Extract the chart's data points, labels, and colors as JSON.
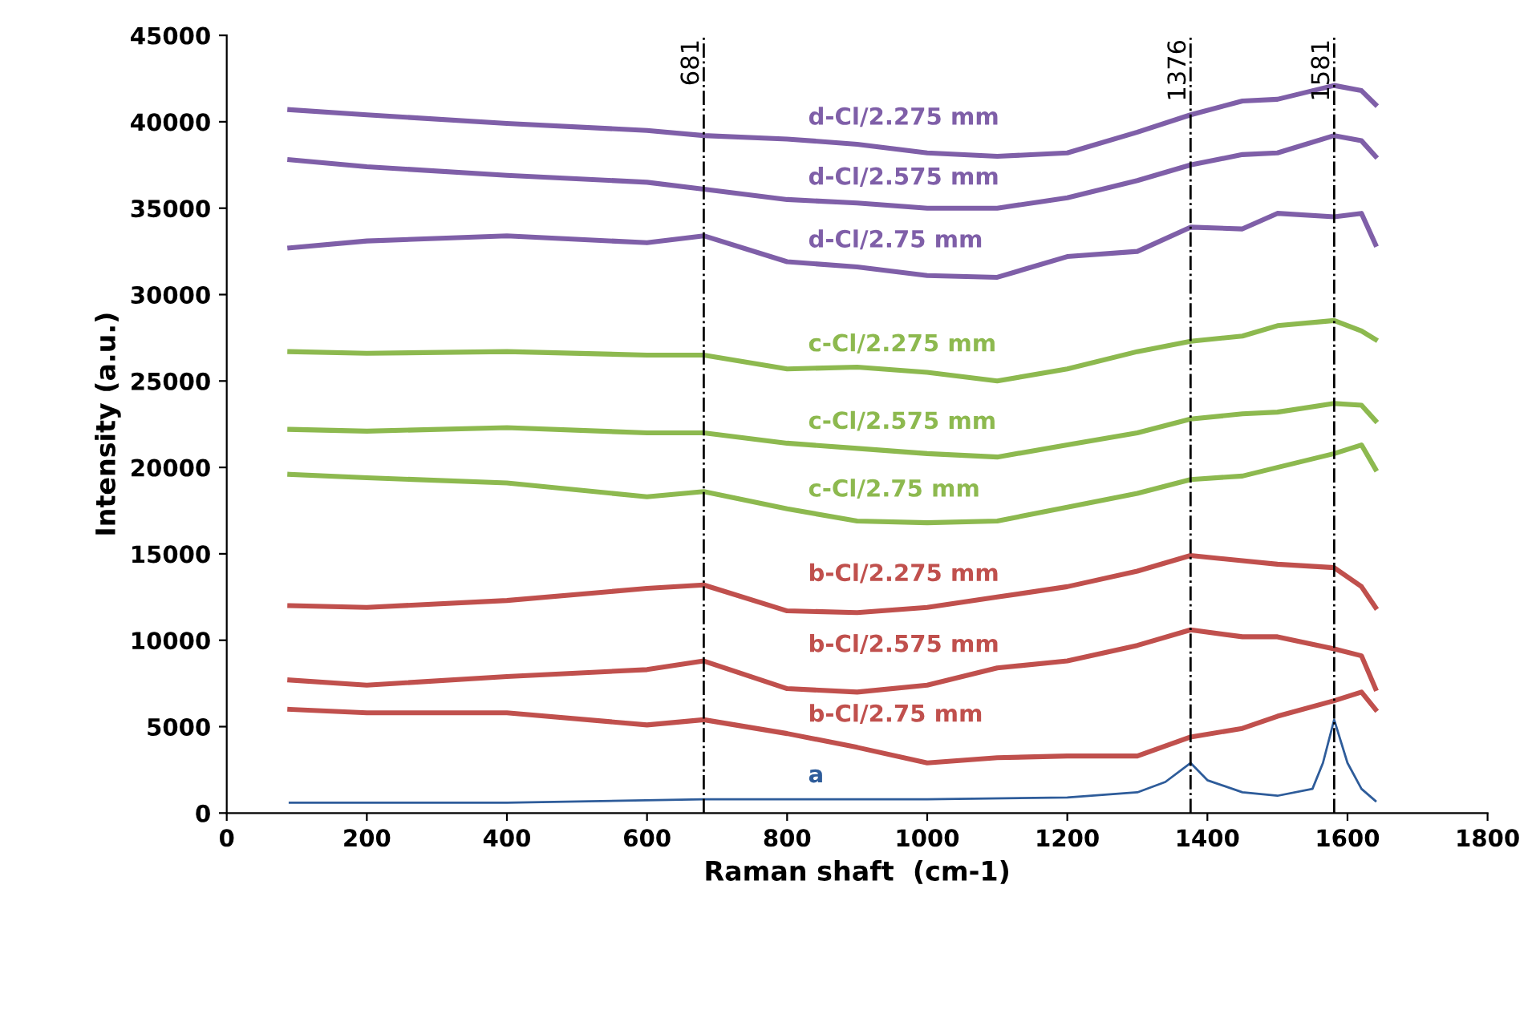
{
  "chart_data": {
    "type": "line",
    "xlabel": "Raman shaft  (cm-1)",
    "ylabel": "Intensity (a.u.)",
    "xlim": [
      0,
      1800
    ],
    "xticks": [
      0,
      200,
      400,
      600,
      800,
      1000,
      1200,
      1400,
      1600,
      1800
    ],
    "ylim": [
      0,
      45000
    ],
    "yticks": [
      0,
      5000,
      10000,
      15000,
      20000,
      25000,
      30000,
      35000,
      40000,
      45000
    ],
    "grid": false,
    "legend": false,
    "marker": "none",
    "line_style": "solid",
    "x": [
      90,
      200,
      400,
      600,
      681,
      800,
      900,
      1000,
      1100,
      1200,
      1300,
      1376,
      1450,
      1500,
      1581,
      1620,
      1640
    ],
    "series": [
      {
        "name": "d-Cl/2.275 mm",
        "color": "#7f5fa8",
        "values": [
          40700,
          40400,
          39900,
          39500,
          39200,
          39000,
          38700,
          38200,
          38000,
          38200,
          39400,
          40400,
          41200,
          41300,
          42100,
          41800,
          41000
        ]
      },
      {
        "name": "d-Cl/2.575 mm",
        "color": "#7f5fa8",
        "values": [
          37800,
          37400,
          36900,
          36500,
          36100,
          35500,
          35300,
          35000,
          35000,
          35600,
          36600,
          37500,
          38100,
          38200,
          39200,
          38900,
          38000
        ]
      },
      {
        "name": "d-Cl/2.75 mm",
        "color": "#7f5fa8",
        "values": [
          32700,
          33100,
          33400,
          33000,
          33400,
          31900,
          31600,
          31100,
          31000,
          32200,
          32500,
          33900,
          33800,
          34700,
          34500,
          34700,
          32900
        ]
      },
      {
        "name": "c-Cl/2.275 mm",
        "color": "#8db94f",
        "values": [
          26700,
          26600,
          26700,
          26500,
          26500,
          25700,
          25800,
          25500,
          25000,
          25700,
          26700,
          27300,
          27600,
          28200,
          28500,
          27900,
          27400
        ]
      },
      {
        "name": "c-Cl/2.575 mm",
        "color": "#8db94f",
        "values": [
          22200,
          22100,
          22300,
          22000,
          22000,
          21400,
          21100,
          20800,
          20600,
          21300,
          22000,
          22800,
          23100,
          23200,
          23700,
          23600,
          22700
        ]
      },
      {
        "name": "c-Cl/2.75 mm",
        "color": "#8db94f",
        "values": [
          19600,
          19400,
          19100,
          18300,
          18600,
          17600,
          16900,
          16800,
          16900,
          17700,
          18500,
          19300,
          19500,
          20000,
          20800,
          21300,
          19900
        ]
      },
      {
        "name": "b-Cl/2.275 mm",
        "color": "#c0504d",
        "values": [
          12000,
          11900,
          12300,
          13000,
          13200,
          11700,
          11600,
          11900,
          12500,
          13100,
          14000,
          14900,
          14600,
          14400,
          14200,
          13100,
          11900
        ]
      },
      {
        "name": "b-Cl/2.575 mm",
        "color": "#c0504d",
        "values": [
          7700,
          7400,
          7900,
          8300,
          8800,
          7200,
          7000,
          7400,
          8400,
          8800,
          9700,
          10600,
          10200,
          10200,
          9500,
          9100,
          7200
        ]
      },
      {
        "name": "b-Cl/2.75 mm",
        "color": "#c0504d",
        "values": [
          6000,
          5800,
          5800,
          5100,
          5400,
          4600,
          3800,
          2900,
          3200,
          3300,
          3300,
          4400,
          4900,
          5600,
          6500,
          7000,
          6000
        ]
      },
      {
        "name": "a",
        "color": "#2e5c9a",
        "x": [
          90,
          400,
          681,
          1000,
          1200,
          1300,
          1340,
          1376,
          1400,
          1450,
          1500,
          1550,
          1565,
          1581,
          1600,
          1620,
          1640
        ],
        "values": [
          600,
          600,
          800,
          800,
          900,
          1200,
          1800,
          2900,
          1900,
          1200,
          1000,
          1400,
          2900,
          5400,
          2900,
          1400,
          700
        ]
      }
    ],
    "ref_lines": [
      {
        "axis": "x",
        "value": 681,
        "label": "681",
        "color": "#000000",
        "line_style": "dashdot"
      },
      {
        "axis": "x",
        "value": 1376,
        "label": "1376",
        "color": "#000000",
        "line_style": "dashdot"
      },
      {
        "axis": "x",
        "value": 1581,
        "label": "1581",
        "color": "#000000",
        "line_style": "dashdot"
      }
    ]
  }
}
